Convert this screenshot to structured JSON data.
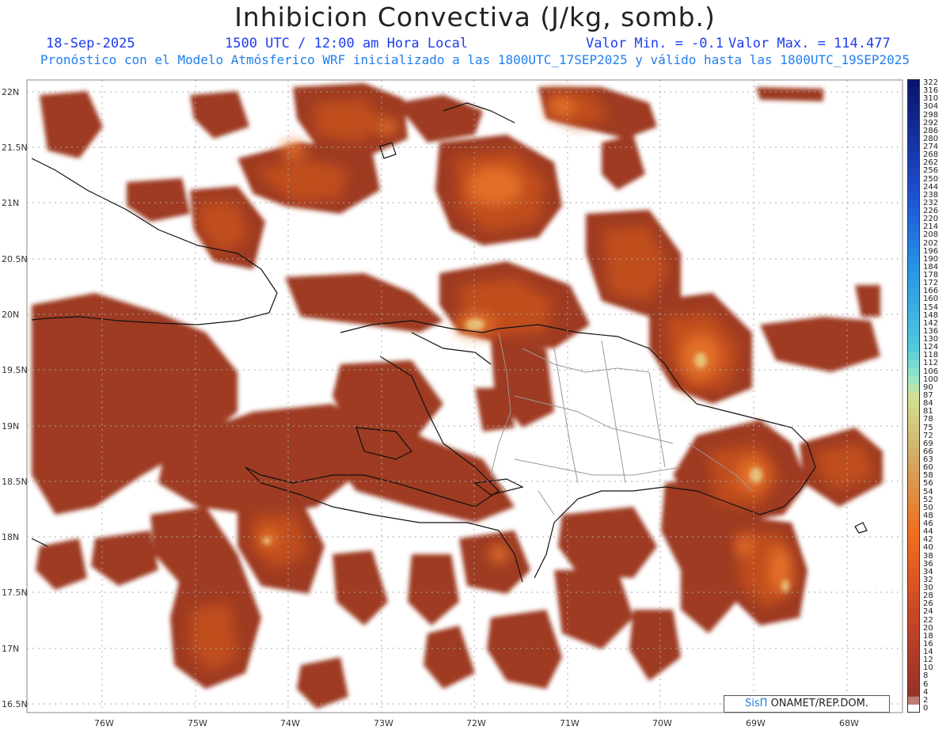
{
  "header": {
    "title": "Inhibicion Convectiva (J/kg, somb.)",
    "date": "18-Sep-2025",
    "time": "1500 UTC / 12:00 am Hora Local",
    "valmin": "Valor Min. = -0.1",
    "valmax": "Valor Max. = 114.477",
    "forecast": "Pronóstico con el Modelo Atmósferico WRF inicializado a las 1800UTC_17SEP2025 y válido hasta las  1800UTC_19SEP2025"
  },
  "axes": {
    "ylabels": [
      "22N",
      "21.5N",
      "21N",
      "20.5N",
      "20N",
      "19.5N",
      "19N",
      "18.5N",
      "18N",
      "17.5N",
      "17N",
      "16.5N"
    ],
    "xlabels": [
      "76W",
      "75W",
      "74W",
      "73W",
      "72W",
      "71W",
      "70W",
      "69W",
      "68W"
    ]
  },
  "colorbar": {
    "labels": [
      "322",
      "316",
      "310",
      "304",
      "298",
      "292",
      "286",
      "280",
      "274",
      "268",
      "262",
      "256",
      "250",
      "244",
      "238",
      "232",
      "226",
      "220",
      "214",
      "208",
      "202",
      "196",
      "190",
      "184",
      "178",
      "172",
      "166",
      "160",
      "154",
      "148",
      "142",
      "136",
      "130",
      "124",
      "118",
      "112",
      "106",
      "100",
      "90",
      "87",
      "84",
      "81",
      "78",
      "75",
      "72",
      "69",
      "66",
      "63",
      "60",
      "58",
      "56",
      "54",
      "52",
      "50",
      "48",
      "46",
      "44",
      "42",
      "40",
      "38",
      "36",
      "34",
      "32",
      "30",
      "28",
      "26",
      "24",
      "22",
      "20",
      "18",
      "16",
      "14",
      "12",
      "10",
      "8",
      "6",
      "4",
      "2",
      "0"
    ]
  },
  "credit": {
    "brand": "SisΠ",
    "org": " ONAMET/REP.DOM."
  },
  "colors": {
    "fill_dark": "#9e3a22",
    "fill_mid": "#c4501f",
    "fill_bright": "#e8742a",
    "fill_peak": "#e9d38a"
  }
}
